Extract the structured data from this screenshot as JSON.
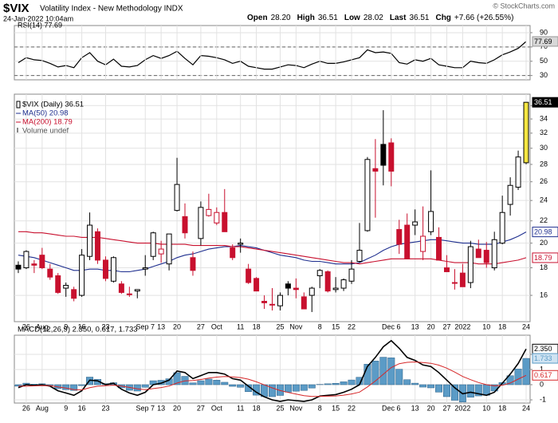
{
  "header": {
    "symbol": "$VIX",
    "name": "Volatility Index - New Methodology INDX",
    "date": "24-Jan-2022 10:04am",
    "quote": [
      {
        "label": "Open",
        "value": "28.20"
      },
      {
        "label": "High",
        "value": "36.51"
      },
      {
        "label": "Low",
        "value": "28.02"
      },
      {
        "label": "Last",
        "value": "36.51"
      },
      {
        "label": "Chg",
        "value": "+7.66 (+26.55%)"
      }
    ],
    "credit": "© StockCharts.com"
  },
  "chart_data": [
    {
      "type": "line",
      "title": "RSI(14) 77.69",
      "ylim": [
        24,
        100
      ],
      "yticks": [
        30,
        50,
        70,
        90
      ],
      "reference_lines": [
        30,
        70
      ],
      "grid": true,
      "series": [
        {
          "name": "RSI(14)",
          "color": "#000000",
          "values": [
            48,
            55,
            52,
            51,
            47,
            42,
            44,
            41,
            55,
            62,
            50,
            45,
            53,
            43,
            42,
            44,
            52,
            58,
            54,
            58,
            64,
            54,
            45,
            58,
            57,
            55,
            52,
            47,
            50,
            43,
            41,
            39,
            39,
            42,
            45,
            44,
            41,
            46,
            50,
            47,
            47,
            49,
            52,
            55,
            66,
            62,
            63,
            61,
            48,
            46,
            52,
            50,
            54,
            45,
            43,
            41,
            41,
            50,
            48,
            47,
            52,
            59,
            63,
            68,
            77.69
          ]
        }
      ]
    },
    {
      "type": "candlestick",
      "log_scale": true,
      "grid": true,
      "ylim": [
        14.3,
        37.8
      ],
      "yticks": [
        16,
        18,
        20,
        22,
        24,
        26,
        28,
        30,
        32,
        34,
        36
      ],
      "up_color": "#000000",
      "down_color": "#c8102e",
      "last_color": "#f5e642",
      "volume_label": "Volume undef",
      "xticks": [
        {
          "value": 1,
          "label": "26"
        },
        {
          "value": 3,
          "label": "Aug"
        },
        {
          "value": 6,
          "label": "9"
        },
        {
          "value": 8,
          "label": "16"
        },
        {
          "value": 11,
          "label": "23"
        },
        {
          "value": 16,
          "label": "Sep 7"
        },
        {
          "value": 18,
          "label": "13"
        },
        {
          "value": 20,
          "label": "20"
        },
        {
          "value": 23,
          "label": "27"
        },
        {
          "value": 25,
          "label": "Oct"
        },
        {
          "value": 28,
          "label": "11"
        },
        {
          "value": 30,
          "label": "18"
        },
        {
          "value": 33,
          "label": "25"
        },
        {
          "value": 35,
          "label": "Nov"
        },
        {
          "value": 38,
          "label": "8"
        },
        {
          "value": 40,
          "label": "15"
        },
        {
          "value": 42,
          "label": "22"
        },
        {
          "value": 47,
          "label": "Dec 6"
        },
        {
          "value": 50,
          "label": "13"
        },
        {
          "value": 52,
          "label": "20"
        },
        {
          "value": 54,
          "label": "27"
        },
        {
          "value": 56,
          "label": "2022"
        },
        {
          "value": 59,
          "label": "10"
        },
        {
          "value": 61,
          "label": "18"
        },
        {
          "value": 64,
          "label": "24"
        }
      ],
      "series": [
        {
          "name": "$VIX (Daily) 36.51",
          "open": [
            18.2,
            18.0,
            18.3,
            19.0,
            17.9,
            17.4,
            16.5,
            16.4,
            16.0,
            18.9,
            21.0,
            18.6,
            17.0,
            16.8,
            16.1,
            16.3,
            17.9,
            18.9,
            19.1,
            18.3,
            23.0,
            22.4,
            18.8,
            20.4,
            22.5,
            21.8,
            22.8,
            19.6,
            19.9,
            17.9,
            17.2,
            15.6,
            15.4,
            15.3,
            16.8,
            16.5,
            15.9,
            16.0,
            17.4,
            17.7,
            16.4,
            16.5,
            17.0,
            18.5,
            21.1,
            27.5,
            30.5,
            30.7,
            21.2,
            21.6,
            21.6,
            19.3,
            21.0,
            20.5,
            18.0,
            16.9,
            17.6,
            16.9,
            19.5,
            19.4,
            18.0,
            20.0,
            23.6,
            25.4,
            28.2
          ],
          "high": [
            18.5,
            19.4,
            18.6,
            19.6,
            18.3,
            17.6,
            16.9,
            16.6,
            19.5,
            22.8,
            21.3,
            18.9,
            18.9,
            17.0,
            16.6,
            16.4,
            19.0,
            21.0,
            20.2,
            20.8,
            28.8,
            23.7,
            19.3,
            23.9,
            24.7,
            23.3,
            25.2,
            19.9,
            20.4,
            18.3,
            17.3,
            16.0,
            16.5,
            16.2,
            17.0,
            17.2,
            16.2,
            16.6,
            17.9,
            17.8,
            17.3,
            17.2,
            18.6,
            21.8,
            28.9,
            31.2,
            35.3,
            31.3,
            22.1,
            22.7,
            23.1,
            23.4,
            27.3,
            21.4,
            19.0,
            17.9,
            18.3,
            20.2,
            20.3,
            20.1,
            21.0,
            24.5,
            26.5,
            29.7,
            36.51
          ],
          "low": [
            17.6,
            17.9,
            17.6,
            17.9,
            17.1,
            16.1,
            15.9,
            15.6,
            15.9,
            18.6,
            18.3,
            17.0,
            16.9,
            16.1,
            15.9,
            15.8,
            17.4,
            18.6,
            18.4,
            17.8,
            22.9,
            20.4,
            17.4,
            19.8,
            22.4,
            21.6,
            21.0,
            18.6,
            19.2,
            16.8,
            16.3,
            15.1,
            15.0,
            15.0,
            16.0,
            15.8,
            15.1,
            14.9,
            16.5,
            16.2,
            16.2,
            16.3,
            16.8,
            18.4,
            21.0,
            22.3,
            25.6,
            25.5,
            19.1,
            18.7,
            20.7,
            18.6,
            20.7,
            18.6,
            17.7,
            16.4,
            16.6,
            16.5,
            18.8,
            18.0,
            17.8,
            19.9,
            22.5,
            25.1,
            28.02
          ],
          "close": [
            17.9,
            19.3,
            18.2,
            18.0,
            17.3,
            16.2,
            16.7,
            15.8,
            19.0,
            21.6,
            18.6,
            17.2,
            18.8,
            16.2,
            16.1,
            16.4,
            18.0,
            20.9,
            19.5,
            20.8,
            25.7,
            20.9,
            17.8,
            23.3,
            23.1,
            22.8,
            21.0,
            18.8,
            20.0,
            16.9,
            16.3,
            15.5,
            15.4,
            16.0,
            16.5,
            16.4,
            15.1,
            16.5,
            17.8,
            16.3,
            16.5,
            17.1,
            17.9,
            19.4,
            28.6,
            27.2,
            27.9,
            27.2,
            19.9,
            18.7,
            21.9,
            20.6,
            22.9,
            18.6,
            17.7,
            16.9,
            16.6,
            19.7,
            18.8,
            18.4,
            20.3,
            22.8,
            25.6,
            28.9,
            36.51
          ]
        },
        {
          "name": "MA(50) 20.98",
          "color": "#1f2f8f",
          "values": [
            19.0,
            18.9,
            18.8,
            18.6,
            18.4,
            18.2,
            18.0,
            17.8,
            17.8,
            17.9,
            17.9,
            17.8,
            17.8,
            17.7,
            17.7,
            17.8,
            17.9,
            18.1,
            18.3,
            18.5,
            18.8,
            19.0,
            19.1,
            19.3,
            19.5,
            19.6,
            19.7,
            19.7,
            19.8,
            19.7,
            19.6,
            19.4,
            19.2,
            19.0,
            18.9,
            18.8,
            18.6,
            18.5,
            18.5,
            18.4,
            18.3,
            18.3,
            18.3,
            18.4,
            18.7,
            19.0,
            19.4,
            19.7,
            19.9,
            20.0,
            20.1,
            20.2,
            20.3,
            20.3,
            20.2,
            20.1,
            20.0,
            20.0,
            19.9,
            19.9,
            19.9,
            20.1,
            20.3,
            20.6,
            20.98
          ]
        },
        {
          "name": "MA(200) 18.79",
          "color": "#c8102e",
          "values": [
            21.0,
            21.0,
            20.9,
            20.9,
            20.8,
            20.7,
            20.6,
            20.6,
            20.5,
            20.5,
            20.5,
            20.4,
            20.3,
            20.2,
            20.1,
            20.0,
            20.0,
            20.0,
            19.9,
            19.9,
            19.9,
            19.9,
            19.8,
            19.8,
            19.8,
            19.8,
            19.8,
            19.7,
            19.7,
            19.6,
            19.5,
            19.4,
            19.3,
            19.2,
            19.1,
            19.0,
            18.9,
            18.8,
            18.7,
            18.6,
            18.5,
            18.4,
            18.4,
            18.3,
            18.4,
            18.5,
            18.6,
            18.7,
            18.7,
            18.7,
            18.7,
            18.7,
            18.7,
            18.6,
            18.5,
            18.4,
            18.4,
            18.4,
            18.3,
            18.3,
            18.3,
            18.4,
            18.5,
            18.6,
            18.79
          ]
        }
      ]
    },
    {
      "type": "macd",
      "title": "MACD(12,26,9) 2.350, 0.617, 1.733",
      "ylim": [
        -1.21,
        3.26
      ],
      "yticks": [
        -1,
        0,
        1,
        2
      ],
      "grid": true,
      "xticks": [
        {
          "value": 1,
          "label": "26"
        },
        {
          "value": 3,
          "label": "Aug"
        },
        {
          "value": 6,
          "label": "9"
        },
        {
          "value": 8,
          "label": "16"
        },
        {
          "value": 11,
          "label": "23"
        },
        {
          "value": 16,
          "label": "Sep 7"
        },
        {
          "value": 18,
          "label": "13"
        },
        {
          "value": 20,
          "label": "20"
        },
        {
          "value": 23,
          "label": "27"
        },
        {
          "value": 25,
          "label": "Oct"
        },
        {
          "value": 28,
          "label": "11"
        },
        {
          "value": 30,
          "label": "18"
        },
        {
          "value": 33,
          "label": "25"
        },
        {
          "value": 35,
          "label": "Nov"
        },
        {
          "value": 38,
          "label": "8"
        },
        {
          "value": 40,
          "label": "15"
        },
        {
          "value": 42,
          "label": "22"
        },
        {
          "value": 47,
          "label": "Dec 6"
        },
        {
          "value": 50,
          "label": "13"
        },
        {
          "value": 52,
          "label": "20"
        },
        {
          "value": 54,
          "label": "27"
        },
        {
          "value": 56,
          "label": "2022"
        },
        {
          "value": 59,
          "label": "10"
        },
        {
          "value": 61,
          "label": "18"
        },
        {
          "value": 64,
          "label": "24"
        }
      ],
      "series": [
        {
          "name": "MACD",
          "kind": "line",
          "color": "#000000",
          "last_label": "2.350",
          "values": [
            -0.2,
            0.0,
            -0.05,
            0.0,
            -0.1,
            -0.4,
            -0.55,
            -0.7,
            -0.4,
            0.3,
            0.25,
            0.0,
            0.1,
            -0.3,
            -0.55,
            -0.7,
            -0.5,
            0.0,
            0.1,
            0.3,
            0.9,
            0.8,
            0.4,
            0.6,
            0.8,
            0.8,
            0.7,
            0.4,
            0.3,
            -0.1,
            -0.5,
            -0.8,
            -1.0,
            -1.1,
            -1.0,
            -1.05,
            -1.1,
            -1.0,
            -0.75,
            -0.7,
            -0.65,
            -0.5,
            -0.3,
            0.0,
            1.2,
            1.8,
            2.5,
            2.9,
            2.4,
            1.8,
            1.6,
            1.3,
            1.2,
            0.8,
            0.3,
            -0.2,
            -0.6,
            -0.5,
            -0.6,
            -0.7,
            -0.5,
            0.1,
            0.7,
            1.4,
            2.35
          ]
        },
        {
          "name": "Signal",
          "kind": "line",
          "color": "#d62728",
          "last_label": "0.617",
          "values": [
            -0.1,
            -0.1,
            -0.08,
            -0.06,
            -0.07,
            -0.14,
            -0.22,
            -0.32,
            -0.34,
            -0.2,
            -0.1,
            -0.07,
            -0.03,
            -0.09,
            -0.18,
            -0.28,
            -0.33,
            -0.26,
            -0.19,
            -0.09,
            0.11,
            0.25,
            0.28,
            0.34,
            0.43,
            0.5,
            0.54,
            0.51,
            0.47,
            0.36,
            0.19,
            -0.01,
            -0.21,
            -0.39,
            -0.51,
            -0.62,
            -0.72,
            -0.78,
            -0.77,
            -0.76,
            -0.74,
            -0.69,
            -0.61,
            -0.49,
            -0.15,
            0.24,
            0.69,
            1.13,
            1.38,
            1.47,
            1.5,
            1.46,
            1.41,
            1.29,
            1.09,
            0.83,
            0.54,
            0.33,
            0.14,
            0.0,
            -0.08,
            -0.04,
            0.11,
            0.37,
            0.617
          ]
        },
        {
          "name": "Histogram",
          "kind": "bar",
          "color": "#5b9bc6",
          "last_label": "1.733",
          "values": [
            -0.1,
            0.1,
            0.03,
            0.06,
            -0.03,
            -0.26,
            -0.33,
            -0.38,
            -0.06,
            0.5,
            0.35,
            0.07,
            0.13,
            -0.21,
            -0.37,
            -0.42,
            -0.17,
            0.26,
            0.29,
            0.39,
            0.79,
            0.55,
            0.12,
            0.26,
            0.37,
            0.3,
            0.16,
            -0.11,
            -0.17,
            -0.46,
            -0.69,
            -0.79,
            -0.79,
            -0.71,
            -0.49,
            -0.43,
            -0.38,
            -0.22,
            0.02,
            0.06,
            0.09,
            0.19,
            0.31,
            0.49,
            1.35,
            1.56,
            1.81,
            1.77,
            1.02,
            0.33,
            0.1,
            -0.16,
            -0.21,
            -0.49,
            -0.79,
            -1.03,
            -1.14,
            -0.83,
            -0.74,
            -0.7,
            -0.42,
            0.14,
            0.59,
            1.03,
            1.733
          ]
        }
      ]
    }
  ]
}
